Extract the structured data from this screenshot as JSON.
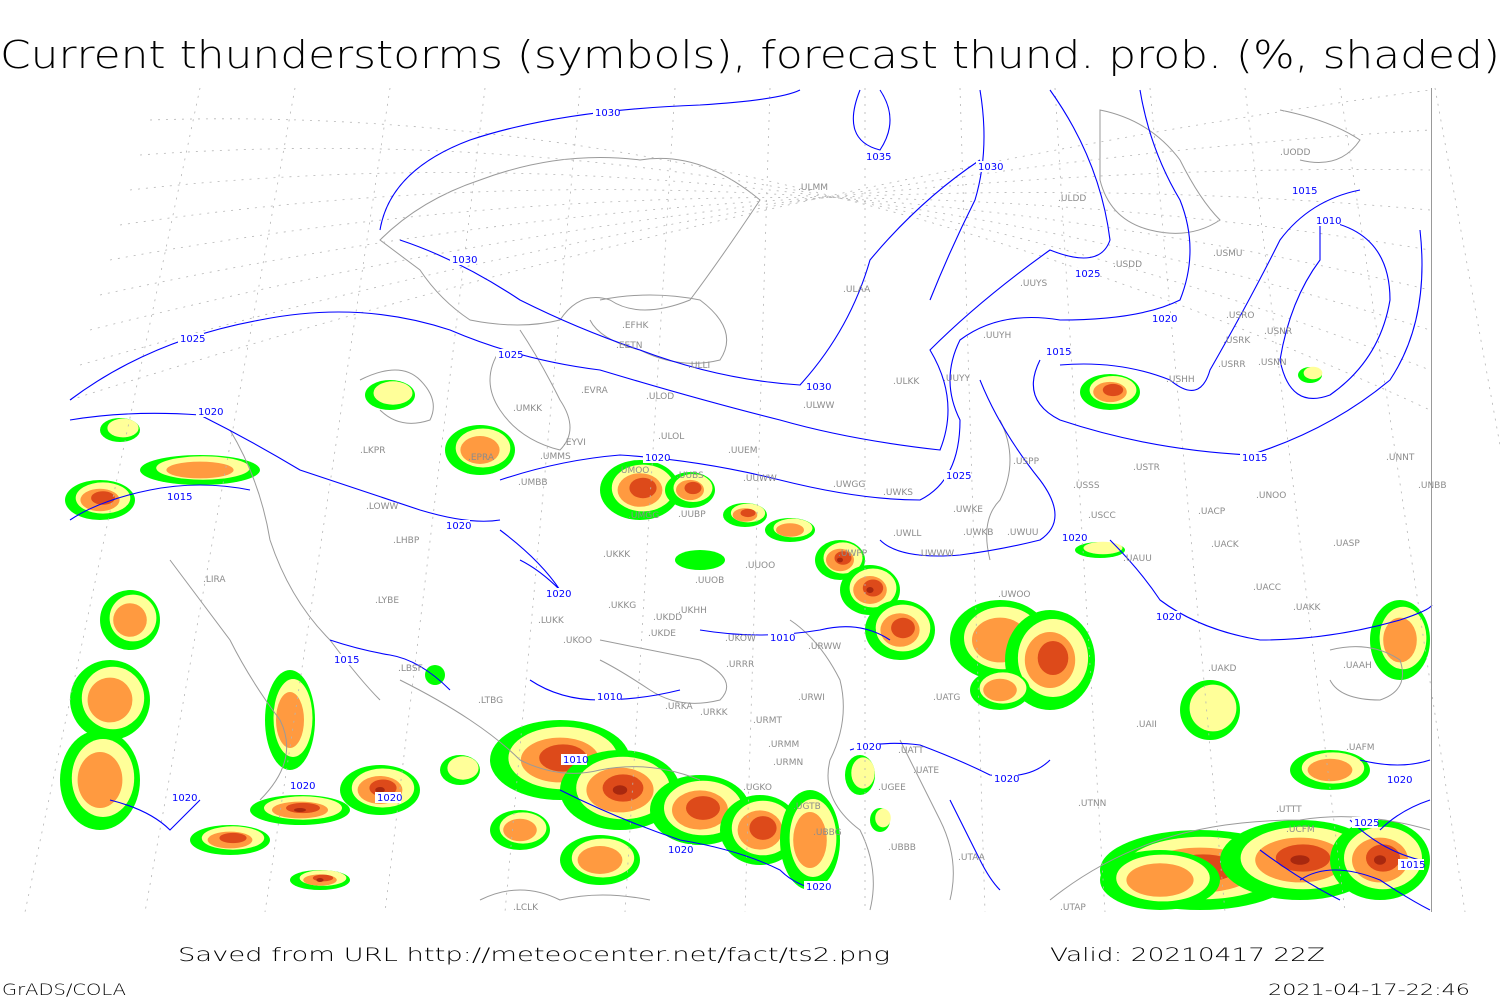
{
  "title": "Current thunderstorms (symbols), forecast thund. prob. (%, shaded)",
  "footer": {
    "source": "Saved from URL http://meteocenter.net/fact/ts2.png",
    "valid": "Valid: 20210417 22Z",
    "software": "GrADS/COLA",
    "timestamp": "2021-04-17-22:46"
  },
  "colors": {
    "isobar": "#0000ff",
    "coastline": "#9a9a9a",
    "station_label": "#8c8c8c",
    "prob_low": "#00ff00",
    "prob_mid": "#ffff99",
    "prob_high": "#ff9a40",
    "prob_very_high": "#dd4a1a",
    "prob_max": "#a8280f"
  },
  "isobar_labels": [
    "1030",
    "1035",
    "1030",
    "1030",
    "1025",
    "1025",
    "1030",
    "1025",
    "1020",
    "1015",
    "1010",
    "1015",
    "1020",
    "1015",
    "1025",
    "1020",
    "1015",
    "1020",
    "1020",
    "1020",
    "1020",
    "1015",
    "1010",
    "1010",
    "1010",
    "1015",
    "1020",
    "1020",
    "1020",
    "1020",
    "1020",
    "1020",
    "1025",
    "1020",
    "1020"
  ],
  "stations": [
    "EFHK",
    "EETN",
    "ULLI",
    "EVRA",
    "ULOD",
    "UMKK",
    "EYVI",
    "ULOL",
    "UUEM",
    "UMMS",
    "EPRA",
    "UMBB",
    "UMOO",
    "UUBS",
    "UMGG",
    "UUBP",
    "UUWW",
    "UWGG",
    "UWKS",
    "UWKE",
    "UWLL",
    "UWKB",
    "UWUU",
    "UWPP",
    "UWWW",
    "UKKK",
    "UUOO",
    "UUOB",
    "UKHH",
    "UKKG",
    "UKDD",
    "UKDE",
    "UKOW",
    "URWW",
    "URRR",
    "URWI",
    "URMT",
    "URMM",
    "URMN",
    "UGKO",
    "UGTB",
    "LKPR",
    "LOWW",
    "LHBP",
    "LIRA",
    "LYBE",
    "LBSF",
    "LUKK",
    "UKOO",
    "LTBG",
    "URKA",
    "URKK",
    "ULMM",
    "ULAA",
    "UUYY",
    "ULKK",
    "ULWW",
    "UUYH",
    "UUYS",
    "USDD",
    "ULDD",
    "USMU",
    "USRO",
    "USRK",
    "USNR",
    "USRR",
    "USNN",
    "USHH",
    "USPP",
    "USTR",
    "USSS",
    "UNOO",
    "USCC",
    "UACP",
    "UACK",
    "UASP",
    "UNNT",
    "UNBB",
    "UAUU",
    "UWOO",
    "UATG",
    "UAKD",
    "UACC",
    "UAKK",
    "UAAH",
    "UAII",
    "UATE",
    "UATT",
    "UTNN",
    "UBBB",
    "UTAA",
    "UODD",
    "LCLK",
    "UTAP",
    "UGEE",
    "UBBG",
    "UAFM",
    "UTTT",
    "UCFM"
  ]
}
